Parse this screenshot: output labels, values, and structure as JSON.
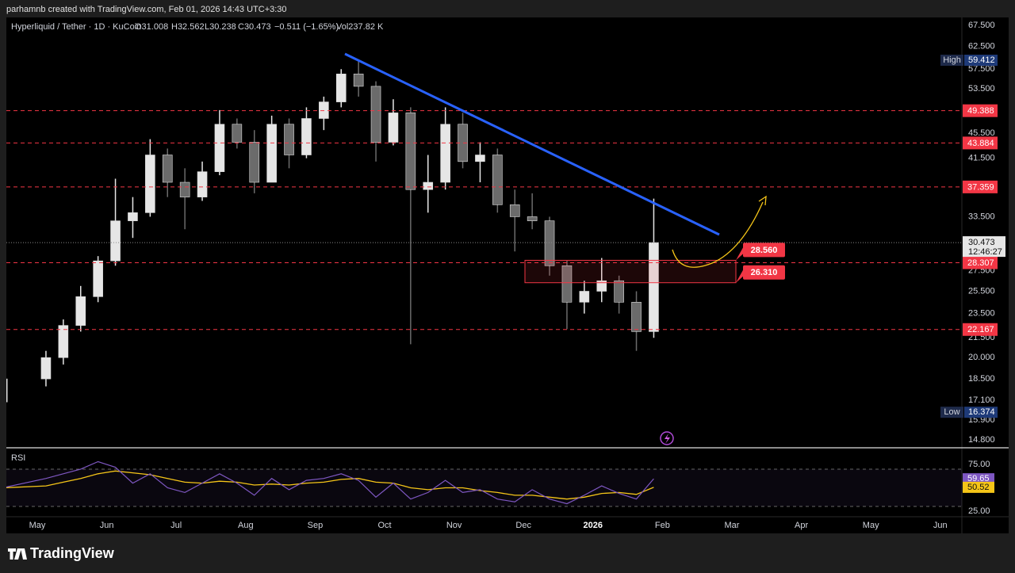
{
  "caption": "parhamnb created with TradingView.com, Feb 01, 2026 14:43 UTC+3:30",
  "brand": "TradingView",
  "chart_data": {
    "type": "candlestick",
    "legend": {
      "symbol": "Hyperliquid / Tether · 1D · KuCoin",
      "open": "O31.008",
      "high": "H32.562",
      "low": "L30.238",
      "close": "C30.473",
      "change": "−0.511 (−1.65%)",
      "volume": "Vol237.82 K"
    },
    "x": [
      "2025-04",
      "2025-05",
      "2025-05",
      "2025-05",
      "2025-05",
      "2025-06",
      "2025-06",
      "2025-06",
      "2025-06",
      "2025-07",
      "2025-07",
      "2025-07",
      "2025-07",
      "2025-08",
      "2025-08",
      "2025-08",
      "2025-08",
      "2025-09",
      "2025-09",
      "2025-09",
      "2025-09",
      "2025-10",
      "2025-10",
      "2025-10",
      "2025-10",
      "2025-11",
      "2025-11",
      "2025-11",
      "2025-11",
      "2025-12",
      "2025-12",
      "2025-12",
      "2025-12",
      "2026-01",
      "2026-01",
      "2026-01",
      "2026-01"
    ],
    "open": [
      17,
      18.5,
      20,
      22.5,
      25,
      28.5,
      33,
      34,
      42,
      38,
      36,
      39.5,
      47,
      44,
      38,
      47,
      42,
      48,
      51,
      56.5,
      54,
      44,
      49,
      37,
      38,
      47,
      41,
      42,
      35,
      33.5,
      33,
      28,
      24.5,
      25.5,
      26.5,
      24.5,
      22
    ],
    "high": [
      19.5,
      20.5,
      23,
      26,
      29,
      38.5,
      36,
      44.5,
      43,
      40,
      41,
      49.5,
      48,
      46,
      48.5,
      48,
      50,
      52,
      57.5,
      59.412,
      55,
      51.5,
      50,
      42,
      50,
      49,
      44,
      43,
      37,
      36.5,
      33.5,
      28.5,
      26.5,
      28.8,
      27,
      25.5,
      35.8
    ],
    "low": [
      16.374,
      18,
      19.5,
      22,
      24.5,
      28,
      31,
      33.5,
      36,
      32,
      35.5,
      39,
      43,
      36.5,
      38,
      40,
      41.5,
      46,
      50,
      52,
      41,
      43.5,
      21,
      34,
      37,
      40,
      38,
      34,
      29.5,
      32,
      27,
      22.2,
      23.5,
      24.5,
      23.5,
      20.5,
      21.5
    ],
    "close": [
      18.5,
      20,
      22.5,
      25,
      28.5,
      33,
      34,
      42,
      38,
      36,
      39.5,
      47,
      44,
      38,
      47,
      42,
      48,
      51,
      56.5,
      54,
      44,
      49,
      37,
      38,
      47,
      41,
      42,
      35,
      33.5,
      33,
      28,
      24.5,
      25.5,
      26.5,
      24.5,
      22,
      30.473
    ],
    "up_color": "#e6e6e6",
    "down_color": "#6b6b6b",
    "log_scale": true,
    "ylim": [
      14.8,
      67.5
    ],
    "yticks": [
      {
        "value": 67.5,
        "label": "67.500"
      },
      {
        "value": 62.5,
        "label": "62.500"
      },
      {
        "value": 57.5,
        "label": "57.500"
      },
      {
        "value": 53.5,
        "label": "53.500"
      },
      {
        "value": 45.5,
        "label": "45.500"
      },
      {
        "value": 41.5,
        "label": "41.500"
      },
      {
        "value": 33.5,
        "label": "33.500"
      },
      {
        "value": 27.5,
        "label": "27.500"
      },
      {
        "value": 25.5,
        "label": "25.500"
      },
      {
        "value": 23.5,
        "label": "23.500"
      },
      {
        "value": 21.5,
        "label": "21.500"
      },
      {
        "value": 20,
        "label": "20.000"
      },
      {
        "value": 18.5,
        "label": "18.500"
      },
      {
        "value": 17.1,
        "label": "17.100"
      },
      {
        "value": 15.9,
        "label": "15.900"
      },
      {
        "value": 14.8,
        "label": "14.800"
      }
    ],
    "xticks": [
      {
        "value": "2025-05",
        "label": "May"
      },
      {
        "value": "2025-06",
        "label": "Jun"
      },
      {
        "value": "2025-07",
        "label": "Jul"
      },
      {
        "value": "2025-08",
        "label": "Aug"
      },
      {
        "value": "2025-09",
        "label": "Sep"
      },
      {
        "value": "2025-10",
        "label": "Oct"
      },
      {
        "value": "2025-11",
        "label": "Nov"
      },
      {
        "value": "2025-12",
        "label": "Dec"
      },
      {
        "value": "2026-01",
        "label": "2026"
      },
      {
        "value": "2026-02",
        "label": "Feb"
      },
      {
        "value": "2026-03",
        "label": "Mar"
      },
      {
        "value": "2026-04",
        "label": "Apr"
      },
      {
        "value": "2026-05",
        "label": "May"
      },
      {
        "value": "2026-06",
        "label": "Jun"
      }
    ],
    "levels": [
      49.388,
      43.884,
      37.359,
      28.307,
      22.167
    ],
    "level_color": "#f23645",
    "session_high": {
      "label": "High",
      "value": 59.412
    },
    "session_low": {
      "label": "Low",
      "value": 16.374
    },
    "last_price": {
      "value": 30.473,
      "countdown": "12:46:27"
    },
    "zone": {
      "top": {
        "value": 28.56,
        "label": "28.560"
      },
      "bottom": {
        "value": 26.31,
        "label": "26.310"
      }
    },
    "rsi": {
      "title": "RSI",
      "color": "#7e57c2",
      "ma_color": "#f5c518",
      "values": [
        50,
        60,
        65,
        70,
        78,
        72,
        55,
        65,
        50,
        45,
        55,
        65,
        55,
        42,
        60,
        48,
        58,
        60,
        65,
        58,
        40,
        55,
        38,
        45,
        58,
        45,
        48,
        38,
        35,
        48,
        38,
        33,
        42,
        52,
        44,
        38,
        59.65
      ],
      "ma": [
        50,
        52,
        56,
        60,
        65,
        68,
        66,
        64,
        60,
        56,
        55,
        57,
        56,
        53,
        54,
        53,
        55,
        56,
        59,
        60,
        56,
        55,
        50,
        48,
        50,
        50,
        47,
        45,
        42,
        42,
        40,
        38,
        40,
        44,
        45,
        43,
        50.52
      ],
      "ylim": [
        25,
        75
      ],
      "yticks": [
        {
          "value": 75,
          "label": "75.00"
        },
        {
          "value": 25,
          "label": "25.00"
        }
      ]
    }
  }
}
